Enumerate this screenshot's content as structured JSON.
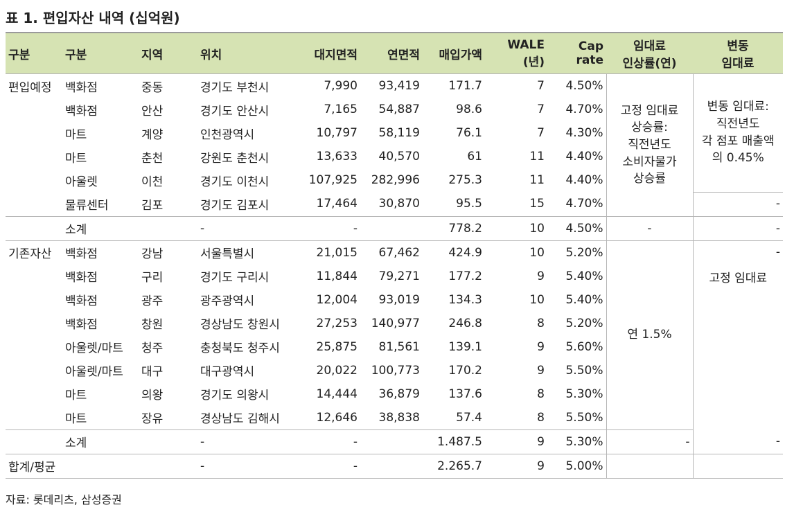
{
  "title": "표 1. 편입자산 내역 (십억원)",
  "header": [
    [
      "구분"
    ],
    [
      "구분"
    ],
    [
      "지역"
    ],
    [
      "위치"
    ],
    [
      "대지면적"
    ],
    [
      "연면적"
    ],
    [
      "매입가액"
    ],
    [
      "WALE",
      "(년)"
    ],
    [
      "Cap rate"
    ],
    [
      "임대료",
      "인상률(연)"
    ],
    [
      "변동",
      "임대료"
    ]
  ],
  "groups": [
    {
      "label": "편입예정",
      "rows": [
        [
          "백화점",
          "중동",
          "경기도 부천시",
          "7,990",
          "93,419",
          "171.7",
          "7",
          "4.50%"
        ],
        [
          "백화점",
          "안산",
          "경기도 안산시",
          "7,165",
          "54,887",
          "98.6",
          "7",
          "4.70%"
        ],
        [
          "마트",
          "계양",
          "인천광역시",
          "10,797",
          "58,119",
          "76.1",
          "7",
          "4.30%"
        ],
        [
          "마트",
          "춘천",
          "강원도 춘천시",
          "13,633",
          "40,570",
          "61",
          "11",
          "4.40%"
        ],
        [
          "아울렛",
          "이천",
          "경기도 이천시",
          "107,925",
          "282,996",
          "275.3",
          "11",
          "4.40%"
        ],
        [
          "물류센터",
          "김포",
          "경기도 김포시",
          "17,464",
          "30,870",
          "95.5",
          "15",
          "4.70%"
        ]
      ],
      "subtotal": [
        "소계",
        "-",
        "-",
        "778.2",
        "10",
        "4.50%"
      ],
      "rent_increase": [
        "고정 임대료",
        "상승률:",
        "직전년도",
        "소비자물가",
        "상승률"
      ],
      "rent_increase_subtotal": "-",
      "variable_rent": [
        [
          "변동 임대료:",
          "직전년도",
          "각 점포 매출액",
          "의 0.45%"
        ],
        [
          "-"
        ]
      ],
      "variable_rent_subtotal": "-"
    },
    {
      "label": "기존자산",
      "rows": [
        [
          "백화점",
          "강남",
          "서울특별시",
          "21,015",
          "67,462",
          "424.9",
          "10",
          "5.20%"
        ],
        [
          "백화점",
          "구리",
          "경기도 구리시",
          "11,844",
          "79,271",
          "177.2",
          "9",
          "5.40%"
        ],
        [
          "백화점",
          "광주",
          "광주광역시",
          "12,004",
          "93,019",
          "134.3",
          "10",
          "5.40%"
        ],
        [
          "백화점",
          "창원",
          "경상남도 창원시",
          "27,253",
          "140,977",
          "246.8",
          "8",
          "5.20%"
        ],
        [
          "아울렛/마트",
          "청주",
          "충청북도 청주시",
          "25,875",
          "81,561",
          "139.1",
          "9",
          "5.60%"
        ],
        [
          "아울렛/마트",
          "대구",
          "대구광역시",
          "20,022",
          "100,773",
          "170.2",
          "9",
          "5.50%"
        ],
        [
          "마트",
          "의왕",
          "경기도 의왕시",
          "14,444",
          "36,879",
          "137.6",
          "8",
          "5.30%"
        ],
        [
          "마트",
          "장유",
          "경상남도 김해시",
          "12,646",
          "38,838",
          "57.4",
          "8",
          "5.50%"
        ]
      ],
      "subtotal": [
        "소계",
        "-",
        "-",
        "1.487.5",
        "9",
        "5.30%"
      ],
      "rent_increase": [
        "연 1.5%"
      ],
      "rent_increase_subtotal": "-",
      "variable_rent": [
        [
          "-"
        ],
        [
          "고정 임대료"
        ]
      ],
      "variable_rent_subtotal": "-"
    }
  ],
  "total": [
    "합계/평균",
    "-",
    "-",
    "2.265.7",
    "9",
    "5.00%"
  ],
  "source": "자료: 롯데리츠, 삼성증권"
}
